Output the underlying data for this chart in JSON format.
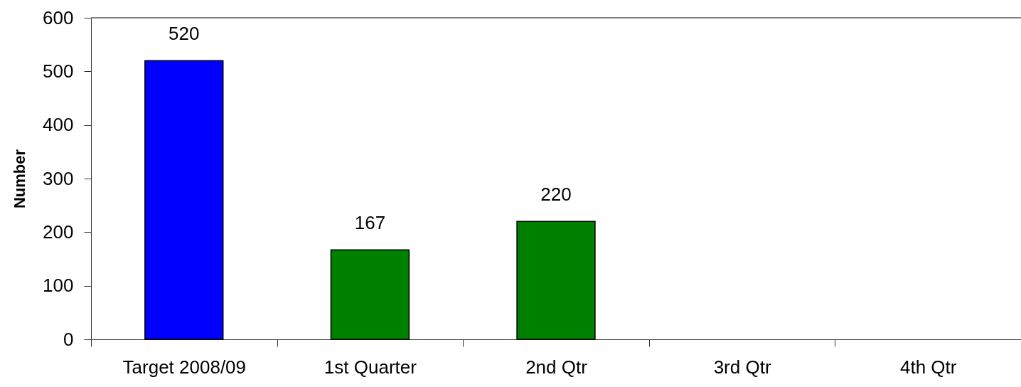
{
  "chart_data": {
    "type": "bar",
    "categories": [
      "Target 2008/09",
      "1st Quarter",
      "2nd Qtr",
      "3rd Qtr",
      "4th Qtr"
    ],
    "values": [
      520,
      167,
      220,
      null,
      null
    ],
    "colors": [
      "#0000ff",
      "#008000",
      "#008000",
      "#008000",
      "#008000"
    ],
    "ylabel": "Number",
    "ylim": [
      0,
      600
    ],
    "yticks": [
      0,
      100,
      200,
      300,
      400,
      500,
      600
    ],
    "data_labels": true,
    "grid": false
  }
}
